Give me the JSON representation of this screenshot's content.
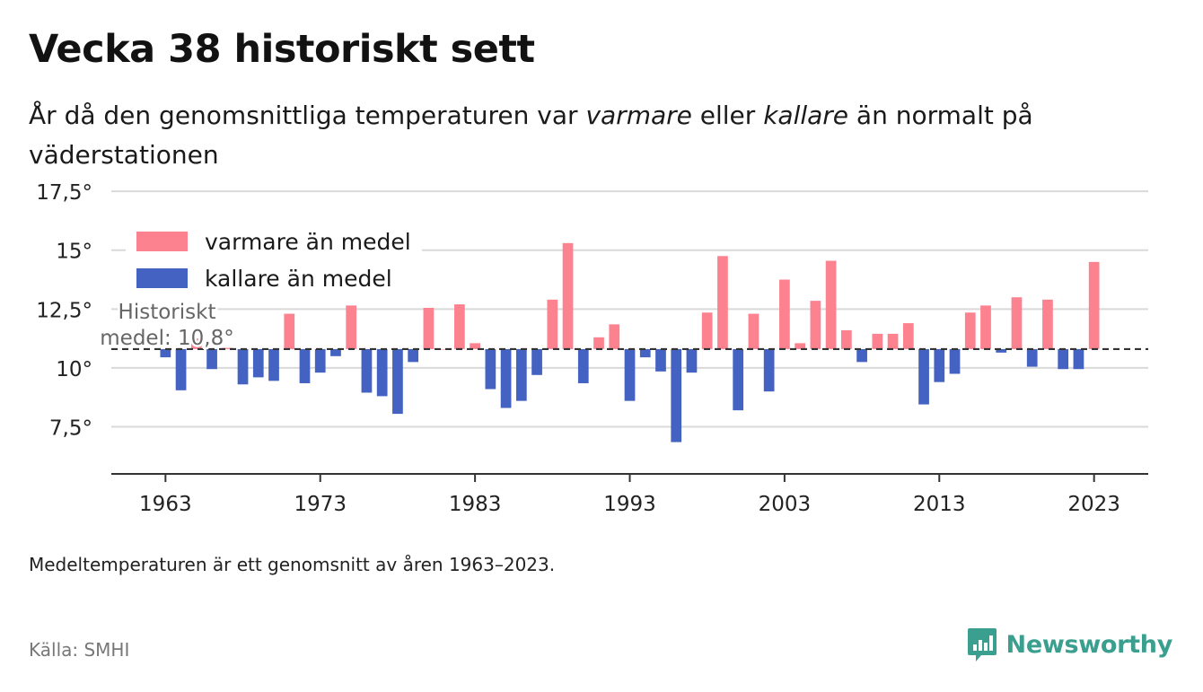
{
  "header": {
    "title": "Vecka 38 historiskt sett",
    "subtitle_parts": [
      "År då den genomsnittliga temperaturen var ",
      "varmare",
      " eller ",
      "kallare",
      " än normalt på väderstationen"
    ]
  },
  "footer": {
    "note": "Medeltemperaturen är ett genomsnitt av åren 1963–2023.",
    "source": "Källa: SMHI",
    "brand": "Newsworthy",
    "brand_icon": "newsworthy-logo-icon"
  },
  "chart_data": {
    "type": "bar",
    "baseline": 10.8,
    "baseline_label_lines": [
      "Historiskt",
      "medel: 10,8°"
    ],
    "ylim": [
      5.5,
      18
    ],
    "yticks": [
      7.5,
      10,
      12.5,
      15,
      17.5
    ],
    "ytick_labels": [
      "7,5°",
      "10°",
      "12,5°",
      "15°",
      "17,5°"
    ],
    "xlim": [
      1959.5,
      2026.5
    ],
    "xticks": [
      1963,
      1973,
      1983,
      1993,
      2003,
      2013,
      2023
    ],
    "xtick_labels": [
      "1963",
      "1973",
      "1983",
      "1993",
      "2003",
      "2013",
      "2023"
    ],
    "legend": [
      {
        "label": "varmare än medel",
        "color": "#fc8290"
      },
      {
        "label": "kallare än medel",
        "color": "#4462c1"
      }
    ],
    "colors": {
      "warm": "#fc8290",
      "cold": "#4462c1"
    },
    "x": [
      1963,
      1964,
      1965,
      1966,
      1967,
      1968,
      1969,
      1970,
      1971,
      1972,
      1973,
      1974,
      1975,
      1976,
      1977,
      1978,
      1979,
      1980,
      1981,
      1982,
      1983,
      1984,
      1985,
      1986,
      1987,
      1988,
      1989,
      1990,
      1991,
      1992,
      1993,
      1994,
      1995,
      1996,
      1997,
      1998,
      1999,
      2000,
      2001,
      2002,
      2003,
      2004,
      2005,
      2006,
      2007,
      2008,
      2009,
      2010,
      2011,
      2012,
      2013,
      2014,
      2015,
      2016,
      2017,
      2018,
      2019,
      2020,
      2021,
      2022,
      2023
    ],
    "values": [
      10.45,
      9.05,
      11.25,
      9.95,
      10.85,
      9.3,
      9.6,
      9.45,
      12.3,
      9.35,
      9.8,
      10.5,
      12.65,
      8.95,
      8.8,
      8.05,
      10.25,
      12.55,
      10.8,
      12.7,
      11.05,
      9.1,
      8.3,
      8.6,
      9.7,
      12.9,
      15.3,
      9.35,
      11.3,
      11.85,
      8.6,
      10.45,
      9.85,
      6.85,
      9.8,
      12.35,
      14.75,
      8.2,
      12.3,
      9.0,
      13.75,
      11.05,
      12.85,
      14.55,
      11.6,
      10.25,
      11.45,
      11.45,
      11.9,
      8.45,
      9.4,
      9.75,
      12.35,
      12.65,
      10.65,
      13.0,
      10.05,
      12.9,
      9.95,
      9.95,
      14.5
    ]
  }
}
